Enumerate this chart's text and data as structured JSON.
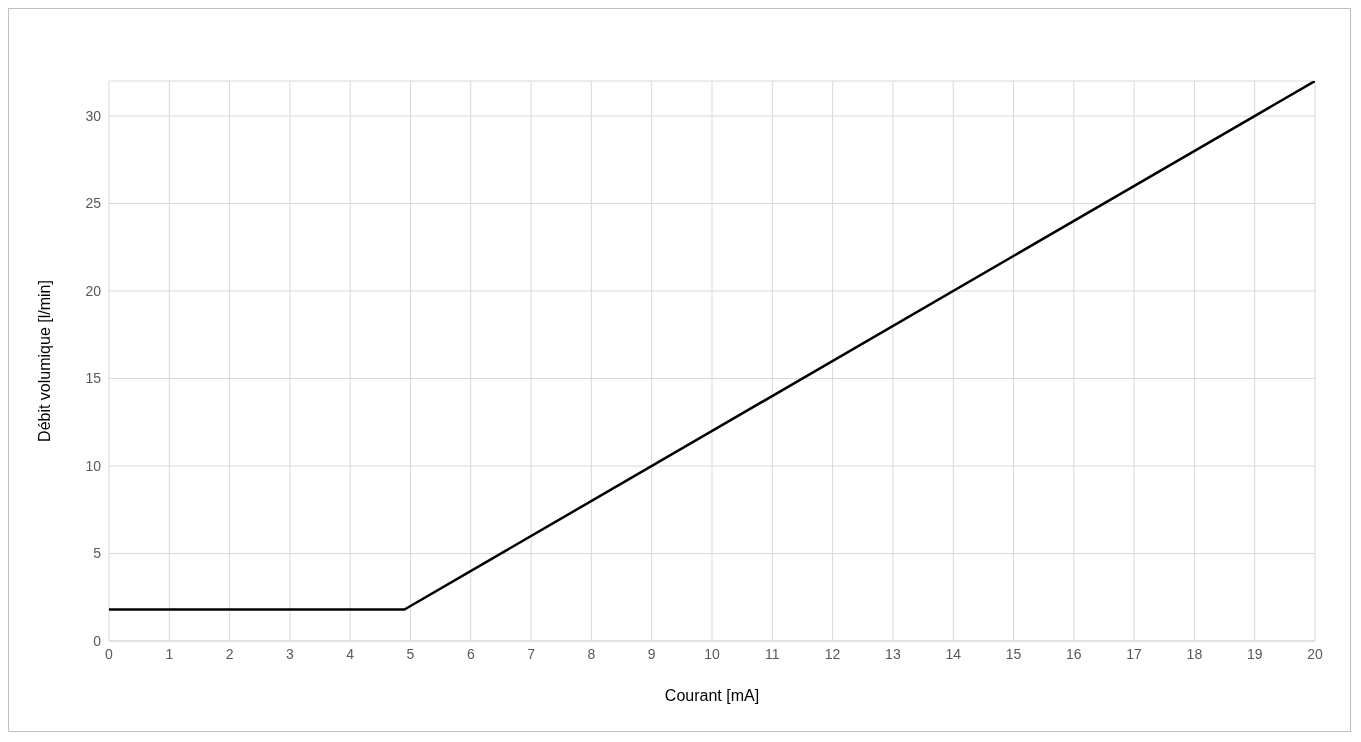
{
  "chart_data": {
    "type": "line",
    "xlabel": "Courant [mA]",
    "ylabel": "Débit volumique [l/min]",
    "x": [
      0,
      4.9,
      20
    ],
    "series": [
      {
        "color": "#000000",
        "values": [
          1.8,
          1.8,
          32
        ]
      }
    ],
    "xlim": [
      0,
      20
    ],
    "xticks": [
      0,
      1,
      2,
      3,
      4,
      5,
      6,
      7,
      8,
      9,
      10,
      11,
      12,
      13,
      14,
      15,
      16,
      17,
      18,
      19,
      20
    ],
    "ylim": [
      0,
      32
    ],
    "yticks": [
      0,
      5,
      10,
      15,
      20,
      25,
      30
    ],
    "grid": true,
    "legend": false,
    "marker": "none",
    "line_style": "solid"
  }
}
